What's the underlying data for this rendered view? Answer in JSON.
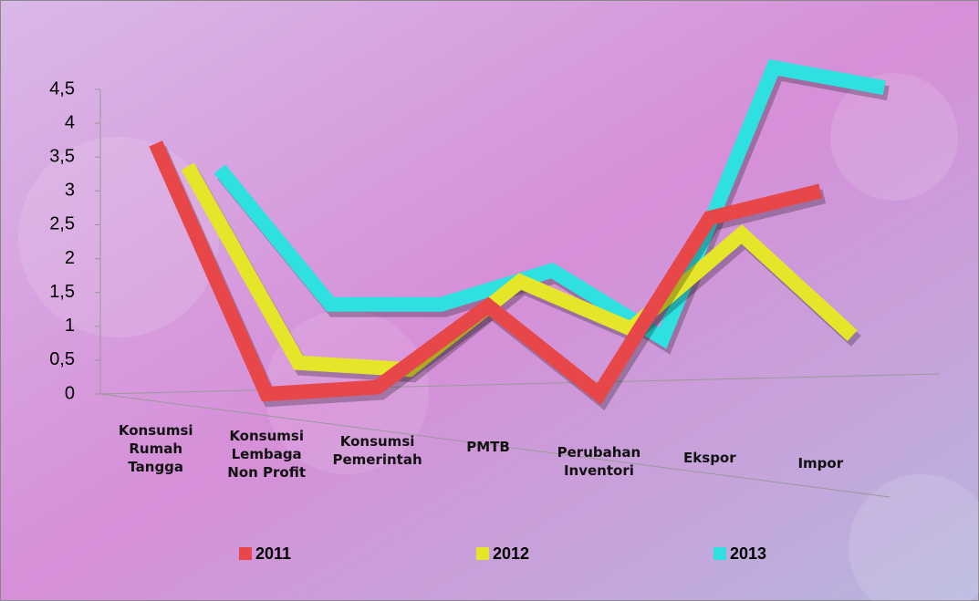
{
  "chart_data": {
    "type": "line",
    "categories": [
      "Konsumsi Rumah Tangga",
      "Konsumsi Lembaga Non Profit",
      "Konsumsi Pemerintah",
      "PMTB",
      "Perubahan Inventori",
      "Ekspor",
      "Impor"
    ],
    "series": [
      {
        "name": "2011",
        "color": "#e8474a",
        "values": [
          3.7,
          0,
          0.1,
          1.3,
          0,
          2.6,
          3.0
        ]
      },
      {
        "name": "2012",
        "color": "#e5e52a",
        "values": [
          3.2,
          0.3,
          0.2,
          1.5,
          0.8,
          2.2,
          0.7
        ]
      },
      {
        "name": "2013",
        "color": "#2ee0e0",
        "values": [
          3.0,
          1.0,
          1.0,
          1.5,
          0.5,
          4.5,
          4.2
        ]
      }
    ],
    "ylim": [
      0,
      4.5
    ],
    "yticks": [
      0,
      {
        "value": 0.5,
        "label": "0,5"
      },
      1,
      {
        "value": 1.5,
        "label": "1,5"
      },
      2,
      {
        "value": 2.5,
        "label": "2,5"
      },
      3,
      {
        "value": 3.5,
        "label": "3,5"
      },
      4,
      {
        "value": 4.5,
        "label": "4,5"
      }
    ]
  }
}
